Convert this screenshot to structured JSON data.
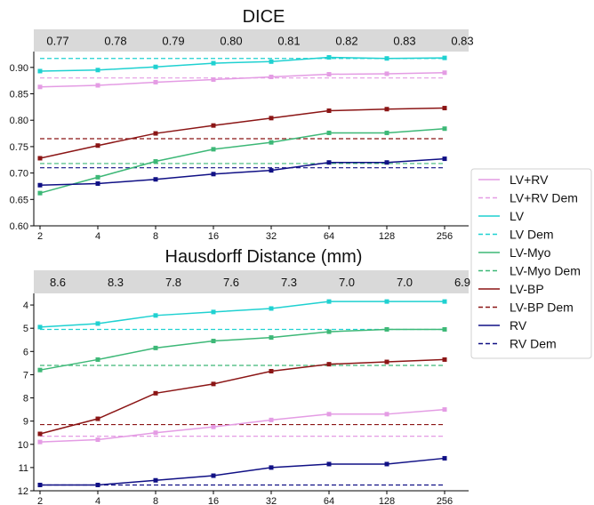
{
  "chart_data": [
    {
      "type": "line",
      "title": "DICE",
      "x": [
        "2",
        "4",
        "8",
        "16",
        "32",
        "64",
        "128",
        "256"
      ],
      "top_labels": [
        "0.77",
        "0.78",
        "0.79",
        "0.80",
        "0.81",
        "0.82",
        "0.83",
        "0.83"
      ],
      "y_ticks": [
        "0.60",
        "0.65",
        "0.70",
        "0.75",
        "0.80",
        "0.85",
        "0.90"
      ],
      "ylim": [
        0.6,
        0.93
      ],
      "y_inverted": false,
      "series": [
        {
          "name": "LV+RV",
          "color": "#e49ce4",
          "values": [
            0.863,
            0.866,
            0.872,
            0.877,
            0.882,
            0.887,
            0.888,
            0.89
          ]
        },
        {
          "name": "LV",
          "color": "#1fd1d1",
          "values": [
            0.893,
            0.895,
            0.901,
            0.908,
            0.911,
            0.919,
            0.917,
            0.918
          ]
        },
        {
          "name": "LV-Myo",
          "color": "#3db877",
          "values": [
            0.662,
            0.692,
            0.722,
            0.745,
            0.758,
            0.776,
            0.776,
            0.784
          ]
        },
        {
          "name": "LV-BP",
          "color": "#8b1515",
          "values": [
            0.728,
            0.752,
            0.775,
            0.79,
            0.804,
            0.818,
            0.821,
            0.823
          ]
        },
        {
          "name": "RV",
          "color": "#101085",
          "values": [
            0.677,
            0.68,
            0.688,
            0.698,
            0.705,
            0.72,
            0.72,
            0.727
          ]
        }
      ],
      "references": [
        {
          "name": "LV+RV Dem",
          "color": "#e49ce4",
          "value": 0.88
        },
        {
          "name": "LV Dem",
          "color": "#1fd1d1",
          "value": 0.917
        },
        {
          "name": "LV-Myo Dem",
          "color": "#3db877",
          "value": 0.718
        },
        {
          "name": "LV-BP Dem",
          "color": "#8b1515",
          "value": 0.765
        },
        {
          "name": "RV Dem",
          "color": "#101085",
          "value": 0.71
        }
      ]
    },
    {
      "type": "line",
      "title": "Hausdorff Distance (mm)",
      "x": [
        "2",
        "4",
        "8",
        "16",
        "32",
        "64",
        "128",
        "256"
      ],
      "top_labels": [
        "8.6",
        "8.3",
        "7.8",
        "7.6",
        "7.3",
        "7.0",
        "7.0",
        "6.9"
      ],
      "y_ticks": [
        "4",
        "5",
        "6",
        "7",
        "8",
        "9",
        "10",
        "11",
        "12"
      ],
      "ylim": [
        3.5,
        12
      ],
      "y_inverted": true,
      "series": [
        {
          "name": "LV+RV",
          "color": "#e49ce4",
          "values": [
            9.9,
            9.8,
            9.5,
            9.25,
            8.95,
            8.7,
            8.7,
            8.5
          ]
        },
        {
          "name": "LV",
          "color": "#1fd1d1",
          "values": [
            4.95,
            4.8,
            4.45,
            4.3,
            4.15,
            3.85,
            3.85,
            3.85
          ]
        },
        {
          "name": "LV-Myo",
          "color": "#3db877",
          "values": [
            6.8,
            6.35,
            5.85,
            5.55,
            5.4,
            5.15,
            5.05,
            5.05
          ]
        },
        {
          "name": "LV-BP",
          "color": "#8b1515",
          "values": [
            9.55,
            8.9,
            7.8,
            7.4,
            6.85,
            6.55,
            6.45,
            6.35
          ]
        },
        {
          "name": "RV",
          "color": "#101085",
          "values": [
            11.75,
            11.75,
            11.55,
            11.35,
            11.0,
            10.85,
            10.85,
            10.6
          ]
        }
      ],
      "references": [
        {
          "name": "LV+RV Dem",
          "color": "#e49ce4",
          "value": 9.65
        },
        {
          "name": "LV Dem",
          "color": "#1fd1d1",
          "value": 5.05
        },
        {
          "name": "LV-Myo Dem",
          "color": "#3db877",
          "value": 6.6
        },
        {
          "name": "LV-BP Dem",
          "color": "#8b1515",
          "value": 9.15
        },
        {
          "name": "RV Dem",
          "color": "#101085",
          "value": 11.75
        }
      ]
    }
  ],
  "legend": {
    "placement": "right",
    "entries": [
      {
        "label": "LV+RV",
        "color": "#e49ce4",
        "style": "solid"
      },
      {
        "label": "LV+RV Dem",
        "color": "#e49ce4",
        "style": "dashed"
      },
      {
        "label": "LV",
        "color": "#1fd1d1",
        "style": "solid"
      },
      {
        "label": "LV Dem",
        "color": "#1fd1d1",
        "style": "dashed"
      },
      {
        "label": "LV-Myo",
        "color": "#3db877",
        "style": "solid"
      },
      {
        "label": "LV-Myo Dem",
        "color": "#3db877",
        "style": "dashed"
      },
      {
        "label": "LV-BP",
        "color": "#8b1515",
        "style": "solid"
      },
      {
        "label": "LV-BP Dem",
        "color": "#8b1515",
        "style": "dashed"
      },
      {
        "label": "RV",
        "color": "#101085",
        "style": "solid"
      },
      {
        "label": "RV Dem",
        "color": "#101085",
        "style": "dashed"
      }
    ]
  }
}
